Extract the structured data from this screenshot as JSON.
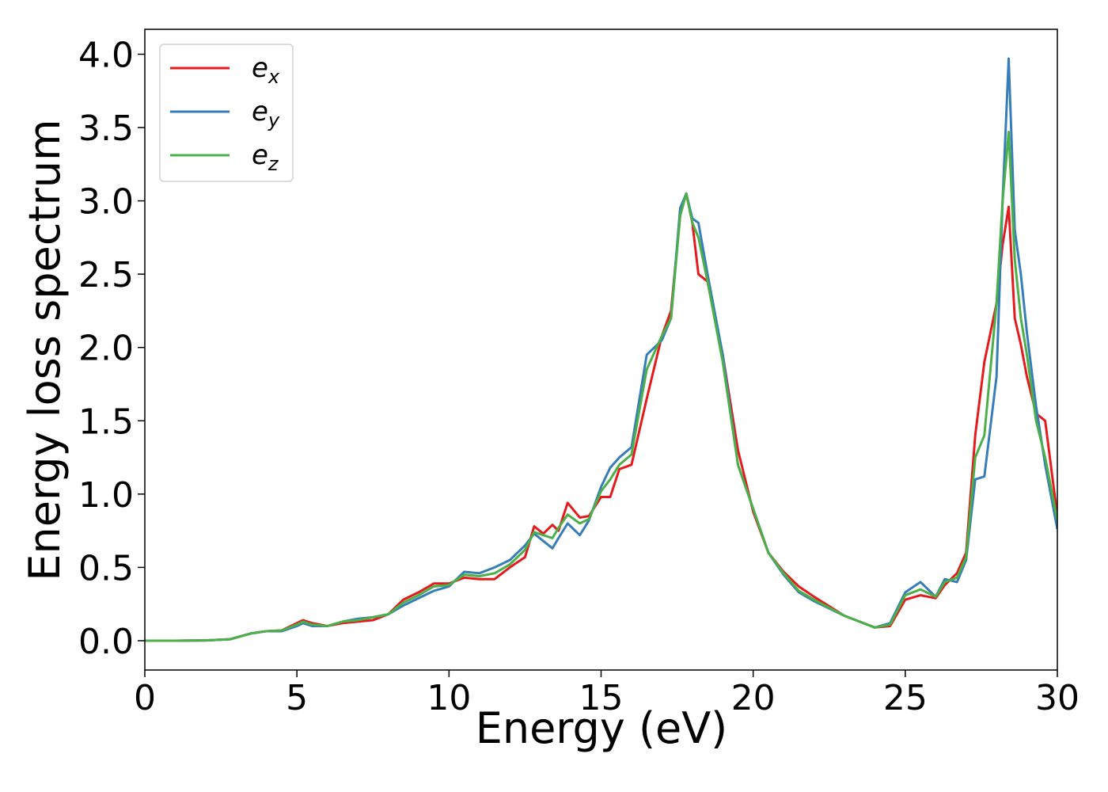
{
  "chart_data": {
    "type": "line",
    "xlabel": "Energy (eV)",
    "ylabel": "Energy loss spectrum",
    "x": [
      0,
      1,
      2,
      2.8,
      3.5,
      4,
      4.5,
      5,
      5.2,
      5.5,
      6,
      6.5,
      7,
      7.5,
      8,
      8.5,
      9,
      9.5,
      10,
      10.5,
      11,
      11.5,
      12,
      12.5,
      12.8,
      13.1,
      13.4,
      13.6,
      13.9,
      14.3,
      14.6,
      15,
      15.3,
      15.6,
      16,
      16.5,
      17,
      17.3,
      17.6,
      17.8,
      18,
      18.2,
      18.5,
      19,
      19.5,
      20,
      20.5,
      21,
      21.5,
      22,
      23,
      24,
      24.5,
      25,
      25.5,
      26,
      26.3,
      26.7,
      27,
      27.3,
      27.6,
      28,
      28.2,
      28.4,
      28.6,
      28.8,
      29,
      29.3,
      29.6,
      30
    ],
    "series": [
      {
        "name": "e_x",
        "color": "#e41a1c",
        "values": [
          0,
          0,
          0.002,
          0.01,
          0.05,
          0.065,
          0.07,
          0.12,
          0.14,
          0.12,
          0.1,
          0.12,
          0.13,
          0.14,
          0.18,
          0.28,
          0.33,
          0.39,
          0.39,
          0.43,
          0.42,
          0.42,
          0.5,
          0.57,
          0.78,
          0.73,
          0.79,
          0.75,
          0.94,
          0.84,
          0.85,
          0.98,
          0.98,
          1.17,
          1.2,
          1.65,
          2.08,
          2.25,
          2.9,
          3.05,
          2.85,
          2.5,
          2.45,
          1.95,
          1.3,
          0.88,
          0.6,
          0.47,
          0.37,
          0.3,
          0.17,
          0.09,
          0.1,
          0.28,
          0.31,
          0.29,
          0.38,
          0.46,
          0.6,
          1.4,
          1.9,
          2.3,
          2.7,
          2.96,
          2.2,
          2.02,
          1.8,
          1.55,
          1.5,
          0.85
        ]
      },
      {
        "name": "e_y",
        "color": "#377eb8",
        "values": [
          0,
          0,
          0.002,
          0.01,
          0.05,
          0.065,
          0.065,
          0.1,
          0.12,
          0.1,
          0.1,
          0.13,
          0.15,
          0.16,
          0.18,
          0.24,
          0.29,
          0.34,
          0.37,
          0.47,
          0.46,
          0.5,
          0.55,
          0.65,
          0.73,
          0.68,
          0.63,
          0.7,
          0.8,
          0.72,
          0.82,
          1.05,
          1.18,
          1.25,
          1.32,
          1.95,
          2.05,
          2.2,
          2.95,
          3.05,
          2.88,
          2.85,
          2.5,
          1.95,
          1.2,
          0.9,
          0.6,
          0.45,
          0.33,
          0.27,
          0.17,
          0.09,
          0.12,
          0.33,
          0.4,
          0.3,
          0.42,
          0.4,
          0.55,
          1.1,
          1.12,
          1.8,
          3.0,
          3.97,
          2.8,
          2.5,
          2.1,
          1.6,
          1.2,
          0.76
        ]
      },
      {
        "name": "e_z",
        "color": "#4daf4a",
        "values": [
          0,
          0,
          0.002,
          0.01,
          0.05,
          0.065,
          0.07,
          0.11,
          0.13,
          0.11,
          0.1,
          0.13,
          0.14,
          0.16,
          0.18,
          0.26,
          0.31,
          0.37,
          0.38,
          0.45,
          0.44,
          0.46,
          0.52,
          0.62,
          0.74,
          0.72,
          0.7,
          0.77,
          0.86,
          0.8,
          0.83,
          1.02,
          1.1,
          1.2,
          1.27,
          1.85,
          2.08,
          2.2,
          2.9,
          3.05,
          2.85,
          2.75,
          2.45,
          1.9,
          1.2,
          0.9,
          0.6,
          0.46,
          0.34,
          0.28,
          0.17,
          0.09,
          0.11,
          0.31,
          0.35,
          0.3,
          0.4,
          0.43,
          0.57,
          1.25,
          1.4,
          2.3,
          3.0,
          3.47,
          2.6,
          2.2,
          1.95,
          1.5,
          1.25,
          0.82
        ]
      }
    ],
    "xlim": [
      0,
      30
    ],
    "xticks": [
      0,
      5,
      10,
      15,
      20,
      25,
      30
    ],
    "ylim": [
      -0.2,
      4.17
    ],
    "yticks": [
      {
        "value": 0,
        "label": "0.0"
      },
      0.5,
      {
        "value": 1,
        "label": "1.0"
      },
      1.5,
      {
        "value": 2,
        "label": "2.0"
      },
      2.5,
      {
        "value": 3,
        "label": "3.0"
      },
      3.5,
      {
        "value": 4,
        "label": "4.0"
      }
    ],
    "legend": "upper left",
    "grid": false
  }
}
